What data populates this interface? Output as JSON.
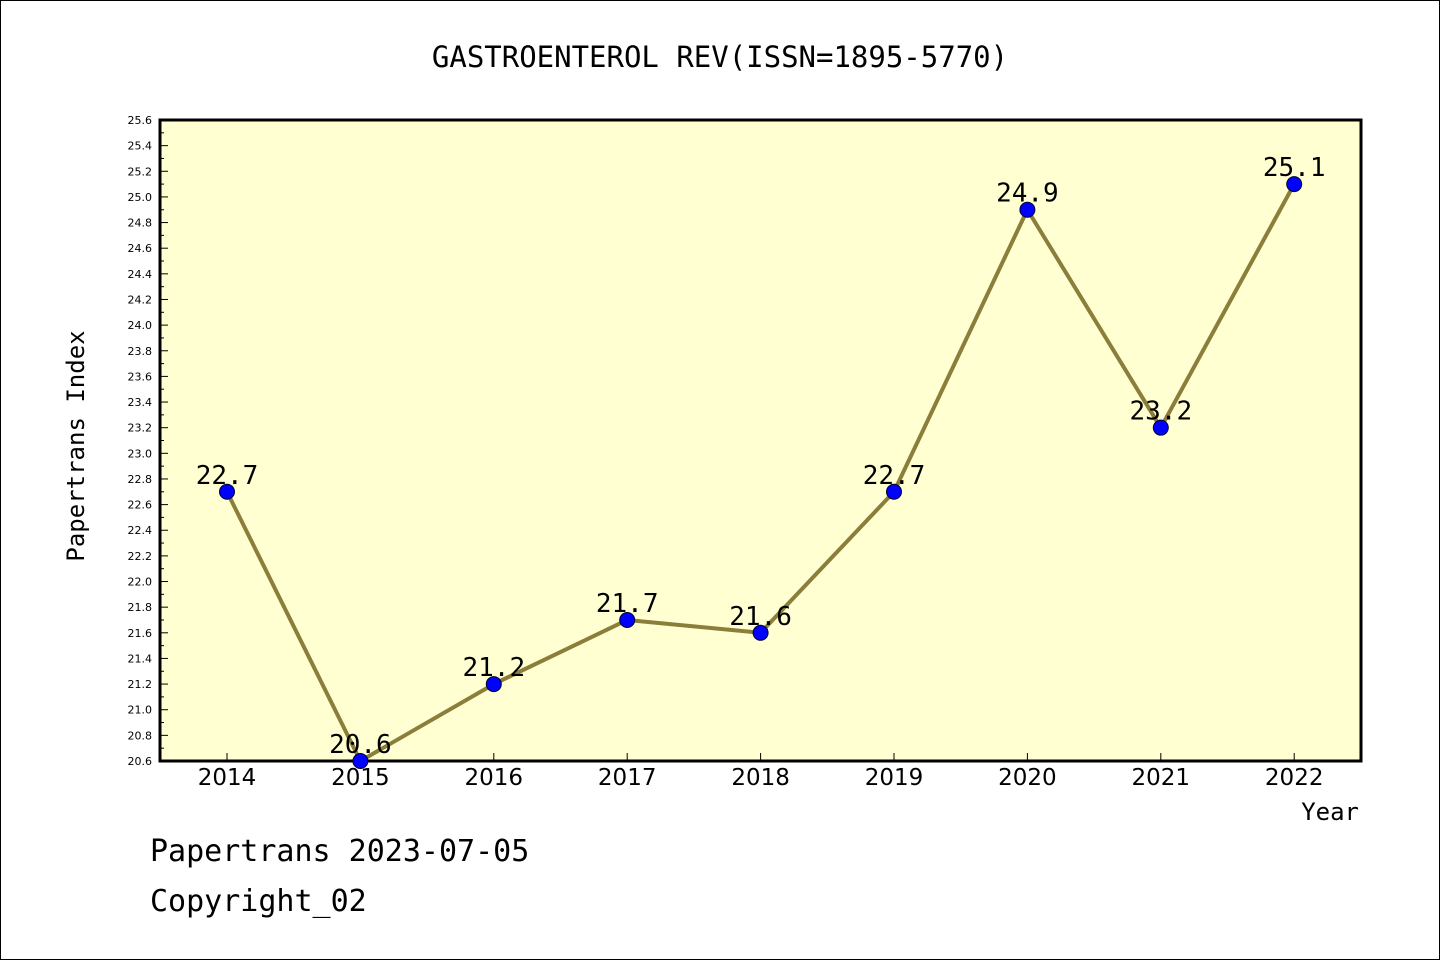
{
  "chart_data": {
    "type": "line",
    "title": "GASTROENTEROL REV(ISSN=1895-5770)",
    "xlabel": "Year",
    "ylabel": "Papertrans Index",
    "categories": [
      "2014",
      "2015",
      "2016",
      "2017",
      "2018",
      "2019",
      "2020",
      "2021",
      "2022"
    ],
    "values": [
      22.7,
      20.6,
      21.2,
      21.7,
      21.6,
      22.7,
      24.9,
      23.2,
      25.1
    ],
    "data_labels": [
      "22.7",
      "20.6",
      "21.2",
      "21.7",
      "21.6",
      "22.7",
      "24.9",
      "23.2",
      "25.1"
    ],
    "ylim": [
      20.6,
      25.6
    ],
    "ytick_step": 0.2,
    "grid": false,
    "colors": {
      "plot_background": "#ffffd2",
      "line": "#8b7d3a",
      "marker": "#0000ff"
    }
  },
  "footer": {
    "source": "Papertrans 2023-07-05",
    "copyright": "Copyright_02"
  }
}
